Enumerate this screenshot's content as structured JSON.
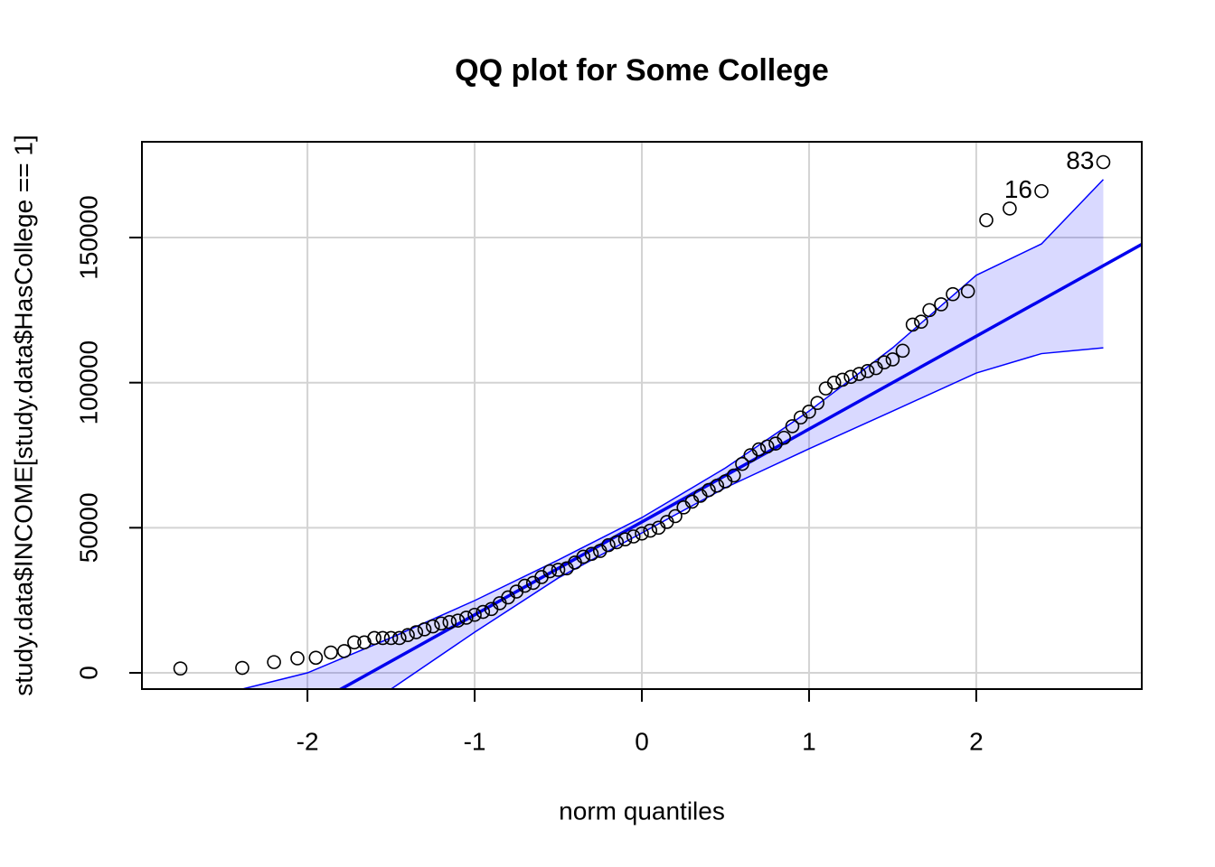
{
  "chart_data": {
    "type": "qq",
    "title": "QQ plot for Some College",
    "x_label": "norm quantiles",
    "y_label": "study.data$INCOME[study.data$HasCollege == 1]",
    "xlim": [
      -2.99,
      2.99
    ],
    "ylim": [
      -5600,
      183000
    ],
    "xticks": [
      -2,
      -1,
      0,
      1,
      2
    ],
    "yticks": [
      0,
      50000,
      100000,
      150000
    ],
    "grid": true,
    "point_color": "#000000",
    "line_color": "#0000ee",
    "band_color": "#0000ff",
    "x": [
      -2.76,
      -2.39,
      -2.2,
      -2.06,
      -1.95,
      -1.86,
      -1.78,
      -1.72,
      -1.66,
      -1.6,
      -1.55,
      -1.5,
      -1.45,
      -1.4,
      -1.35,
      -1.3,
      -1.25,
      -1.2,
      -1.15,
      -1.1,
      -1.05,
      -1.0,
      -0.95,
      -0.9,
      -0.85,
      -0.8,
      -0.75,
      -0.7,
      -0.65,
      -0.6,
      -0.55,
      -0.5,
      -0.45,
      -0.4,
      -0.35,
      -0.3,
      -0.25,
      -0.2,
      -0.15,
      -0.1,
      -0.05,
      0,
      0.05,
      0.1,
      0.15,
      0.2,
      0.25,
      0.3,
      0.35,
      0.4,
      0.45,
      0.5,
      0.55,
      0.6,
      0.65,
      0.7,
      0.75,
      0.8,
      0.85,
      0.9,
      0.95,
      1.0,
      1.05,
      1.1,
      1.15,
      1.2,
      1.25,
      1.3,
      1.35,
      1.4,
      1.45,
      1.5,
      1.56,
      1.62,
      1.67,
      1.72,
      1.79,
      1.86,
      1.95,
      2.06,
      2.2,
      2.39,
      2.76
    ],
    "values": [
      1500,
      1700,
      3700,
      5000,
      5200,
      7000,
      7500,
      10500,
      10500,
      12000,
      12000,
      12000,
      12000,
      13000,
      14000,
      15000,
      16000,
      17000,
      17500,
      18000,
      19000,
      20000,
      21000,
      22000,
      24000,
      26000,
      28000,
      30000,
      31000,
      33000,
      35000,
      35500,
      36000,
      38000,
      40000,
      41000,
      42000,
      44000,
      45000,
      46000,
      47000,
      48000,
      49000,
      50000,
      52000,
      54000,
      57000,
      59000,
      61000,
      63000,
      64500,
      66000,
      68000,
      72000,
      75000,
      77000,
      78000,
      79000,
      81000,
      85000,
      88000,
      90000,
      93000,
      98000,
      100000,
      101000,
      102000,
      103000,
      104000,
      105000,
      107000,
      108000,
      111000,
      120000,
      121000,
      125000,
      127000,
      130500,
      131500,
      156000,
      160000,
      166000,
      176000
    ],
    "point_labels": [
      {
        "label": "16",
        "x": 2.39,
        "y": 166000
      },
      {
        "label": "83",
        "x": 2.76,
        "y": 176000
      }
    ],
    "line": {
      "intercept": 52000,
      "slope": 32000
    },
    "band": {
      "x": [
        -2.39,
        -2.0,
        -1.5,
        -1.0,
        -0.5,
        0,
        0.5,
        1.0,
        1.5,
        2.0,
        2.39,
        2.76
      ],
      "upper": [
        -5600,
        0,
        12100,
        24900,
        38900,
        53500,
        70600,
        90200,
        112000,
        137000,
        147800,
        170000
      ],
      "lower": [
        -38000,
        -23800,
        -5600,
        14000,
        32700,
        48200,
        63800,
        77200,
        90200,
        103300,
        110000,
        112000
      ]
    }
  }
}
